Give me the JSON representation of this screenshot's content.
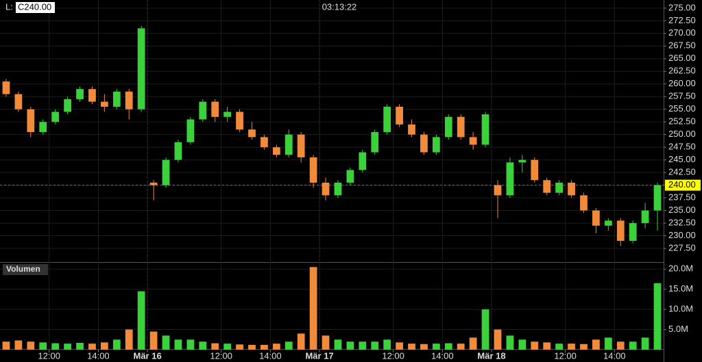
{
  "header": {
    "legend_prefix": "L:",
    "legend_value": "C240.00",
    "clock": "03:13:22"
  },
  "chart_data": [
    {
      "type": "candlestick",
      "open": [
        260.5,
        258,
        255,
        250.5,
        252.5,
        254.5,
        257,
        259,
        256.5,
        255.5,
        258.5,
        255,
        240.5,
        240,
        245,
        248.5,
        253,
        256.5,
        253.5,
        254.5,
        251,
        249.5,
        247.5,
        246,
        250,
        245.5,
        240.5,
        238,
        240.5,
        243,
        246.5,
        250.5,
        255.5,
        252,
        250,
        246.5,
        249.5,
        253.5,
        249.5,
        248,
        240,
        238,
        244.5,
        245,
        241,
        238.5,
        240.5,
        238,
        235,
        232,
        233,
        229,
        232.5,
        235
      ],
      "high": [
        261,
        258.5,
        255.5,
        253,
        255,
        257.5,
        259.5,
        259.5,
        258,
        259,
        259,
        271.5,
        241,
        245.5,
        249,
        253.5,
        257,
        257,
        255.5,
        255,
        252.5,
        250,
        248,
        251,
        250.5,
        246,
        241.5,
        241,
        243.5,
        247,
        251,
        256,
        256,
        253,
        250.5,
        250,
        254,
        254,
        250.5,
        254.5,
        241,
        245.5,
        246,
        245.5,
        241.5,
        241,
        241,
        238.5,
        235.5,
        233.5,
        233.5,
        233,
        236.5,
        240.5
      ],
      "low": [
        257.5,
        254.5,
        249.5,
        250,
        252,
        254,
        256.5,
        256,
        254.5,
        255,
        253,
        254.5,
        237,
        239.5,
        244.5,
        248,
        252.5,
        252.5,
        252.5,
        250.5,
        249,
        247,
        245.5,
        245.5,
        244.5,
        239.5,
        237,
        237.5,
        240,
        242.5,
        246,
        250,
        251.5,
        249.5,
        246,
        246,
        249,
        249,
        247,
        247.5,
        233.5,
        237.5,
        242.5,
        240.5,
        238,
        238,
        237.5,
        234.5,
        230.5,
        231,
        228,
        228.5,
        231.5,
        231
      ],
      "close": [
        258,
        255,
        250.5,
        252.5,
        254.5,
        257,
        259,
        256.5,
        255.5,
        258.5,
        255,
        271,
        240,
        245,
        248.5,
        253,
        256.5,
        253.5,
        254.5,
        251,
        249.5,
        247.5,
        246,
        250,
        245.5,
        240.5,
        238,
        240.5,
        243,
        246.5,
        250.5,
        255.5,
        252,
        250,
        246.5,
        249.5,
        253.5,
        249.5,
        248,
        254,
        238,
        244.5,
        245,
        241,
        238.5,
        240.5,
        238,
        235,
        232,
        233,
        229,
        232.5,
        235,
        240
      ],
      "up_color": "#3bd13b",
      "down_color": "#f28a3c",
      "xlim": [
        -0.5,
        53.5
      ],
      "separators": [
        11.5,
        25.5,
        39.5
      ],
      "ylim": [
        224.8,
        276.6
      ],
      "yticks": [
        {
          "value": 227.5,
          "label": "227.50"
        },
        {
          "value": 230,
          "label": "230.00"
        },
        {
          "value": 232.5,
          "label": "232.50"
        },
        {
          "value": 235,
          "label": "235.00"
        },
        {
          "value": 237.5,
          "label": "237.50"
        },
        {
          "value": 240,
          "label": "240.00"
        },
        {
          "value": 242.5,
          "label": "242.50"
        },
        {
          "value": 245,
          "label": "245.00"
        },
        {
          "value": 247.5,
          "label": "247.50"
        },
        {
          "value": 250,
          "label": "250.00"
        },
        {
          "value": 252.5,
          "label": "252.50"
        },
        {
          "value": 255,
          "label": "255.00"
        },
        {
          "value": 257.5,
          "label": "257.50"
        },
        {
          "value": 260,
          "label": "260.00"
        },
        {
          "value": 262.5,
          "label": "262.50"
        },
        {
          "value": 265,
          "label": "265.00"
        },
        {
          "value": 267.5,
          "label": "267.50"
        },
        {
          "value": 270,
          "label": "270.00"
        },
        {
          "value": 272.5,
          "label": "272.50"
        },
        {
          "value": 275,
          "label": "275.00"
        }
      ],
      "last": {
        "value": 240,
        "label": "240.00"
      },
      "grid": true
    },
    {
      "type": "bar",
      "title": "Volumen",
      "values": [
        2,
        2.3,
        2,
        1.8,
        1.6,
        1.5,
        1.7,
        1.5,
        1.8,
        2.5,
        5,
        14.5,
        4.5,
        3.5,
        2.5,
        2.5,
        2,
        1.6,
        1.5,
        1.3,
        1.2,
        1.2,
        1.5,
        2,
        4,
        20.5,
        3.5,
        2.5,
        2,
        2,
        2,
        2.5,
        1.8,
        1.5,
        1.4,
        1.5,
        1.6,
        1.5,
        3,
        10,
        5,
        3.5,
        2.5,
        2,
        1.8,
        1.5,
        1.5,
        1.4,
        2.5,
        3,
        2,
        2,
        3,
        16.5
      ],
      "xlim": [
        -0.5,
        53.5
      ],
      "xticks": [
        {
          "value": 3.5,
          "label": "12:00"
        },
        {
          "value": 7.5,
          "label": "14:00"
        },
        {
          "value": 11.5,
          "label": "Mär 16"
        },
        {
          "value": 17.5,
          "label": "12:00"
        },
        {
          "value": 21.5,
          "label": "14:00"
        },
        {
          "value": 25.5,
          "label": "Mär 17"
        },
        {
          "value": 31.5,
          "label": "12:00"
        },
        {
          "value": 35.5,
          "label": "14:00"
        },
        {
          "value": 39.5,
          "label": "Mär 18"
        },
        {
          "value": 45.5,
          "label": "12:00"
        },
        {
          "value": 49.5,
          "label": "14:00"
        }
      ],
      "ylim": [
        0,
        21.4
      ],
      "yticks": [
        {
          "value": 5,
          "label": "5.0M"
        },
        {
          "value": 10,
          "label": "10.0M"
        },
        {
          "value": 15,
          "label": "15.0M"
        },
        {
          "value": 20,
          "label": "20.0M"
        }
      ],
      "grid": true
    }
  ]
}
